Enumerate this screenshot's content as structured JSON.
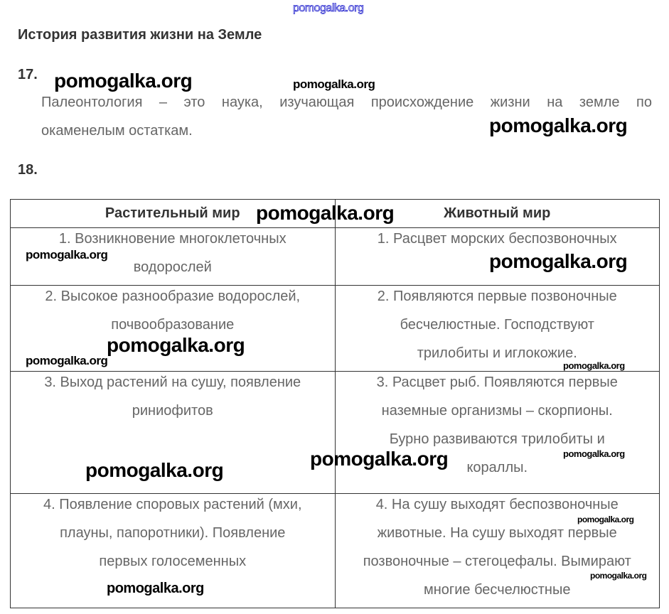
{
  "watermark": "pomogalka.org",
  "title": "История развития жизни на Земле",
  "task17": {
    "number": "17.",
    "lines": [
      "Палеонтология – это наука, изучающая происхождение жизни на земле по",
      "окаменелым остаткам."
    ]
  },
  "task18": {
    "number": "18.",
    "table": {
      "headers": [
        "Растительный мир",
        "Животный мир"
      ],
      "rows": [
        {
          "plants": [
            "1. Возникновение многоклеточных",
            "водорослей"
          ],
          "animals": [
            "1. Расцвет морских беспозвоночных"
          ]
        },
        {
          "plants": [
            "2. Высокое разнообразие водорослей,",
            "почвообразование"
          ],
          "animals": [
            "2. Появляются первые позвоночные",
            "бесчелюстные. Господствуют",
            "трилобиты и иглокожие."
          ]
        },
        {
          "plants": [
            "3. Выход растений на сушу, появление",
            "риниофитов"
          ],
          "animals": [
            "3. Расцвет рыб. Появляются первые",
            "наземные организмы – скорпионы.",
            "Бурно развиваются трилобиты и",
            "кораллы."
          ]
        },
        {
          "plants": [
            "4. Появление споровых растений (мхи,",
            "плауны, папоротники). Появление",
            "первых голосеменных"
          ],
          "animals": [
            "4. На сушу выходят беспозвоночные",
            "животные. На сушу выходят первые",
            "позвоночные – стегоцефалы. Вымирают",
            "многие бесчелюстные"
          ]
        }
      ]
    }
  }
}
